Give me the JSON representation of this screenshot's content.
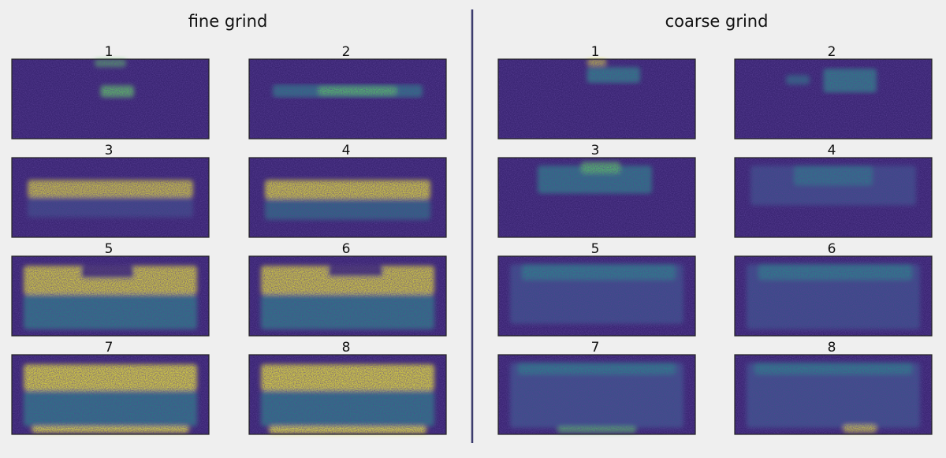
{
  "groups": [
    {
      "title": "fine grind",
      "panels": [
        "1",
        "2",
        "3",
        "4",
        "5",
        "6",
        "7",
        "8"
      ]
    },
    {
      "title": "coarse grind",
      "panels": [
        "1",
        "2",
        "3",
        "4",
        "5",
        "6",
        "7",
        "8"
      ]
    }
  ]
}
